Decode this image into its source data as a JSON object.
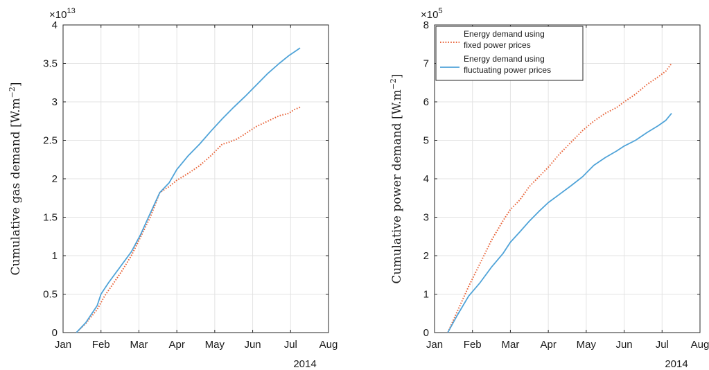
{
  "colors": {
    "fixed": "#e8643a",
    "fluct": "#4fa3d8"
  },
  "chart_data": [
    {
      "type": "line",
      "ylabel": "Cumulative gas demand [W.m",
      "ylabel_sup": "−2",
      "ylabel_end": "]",
      "y_exponent_base": "×10",
      "y_exponent_power": "13",
      "x_tick_labels": [
        "Jan",
        "Feb",
        "Mar",
        "Apr",
        "May",
        "Jun",
        "Jul",
        "Aug"
      ],
      "x_secondary_label": "2014",
      "xlim": [
        0,
        7
      ],
      "ylim": [
        0,
        4
      ],
      "y_ticks": [
        0,
        0.5,
        1,
        1.5,
        2,
        2.5,
        3,
        3.5,
        4
      ],
      "y_tick_labels": [
        "0",
        "0.5",
        "1",
        "1.5",
        "2",
        "2.5",
        "3",
        "3.5",
        "4"
      ],
      "grid": true,
      "legend": null,
      "series": [
        {
          "name": "Energy demand using fixed power prices",
          "style": "dotted",
          "x": [
            0.35,
            0.6,
            0.9,
            1.1,
            1.3,
            1.55,
            1.8,
            2.05,
            2.3,
            2.55,
            2.8,
            3.0,
            3.3,
            3.6,
            3.9,
            4.2,
            4.35,
            4.6,
            4.85,
            5.1,
            5.4,
            5.7,
            5.95,
            6.1,
            6.25
          ],
          "y": [
            0,
            0.12,
            0.3,
            0.48,
            0.62,
            0.8,
            1.0,
            1.25,
            1.5,
            1.82,
            1.9,
            1.98,
            2.07,
            2.17,
            2.3,
            2.45,
            2.47,
            2.52,
            2.6,
            2.68,
            2.75,
            2.82,
            2.85,
            2.9,
            2.93
          ]
        },
        {
          "name": "Energy demand using fluctuating power prices",
          "style": "solid",
          "x": [
            0.35,
            0.6,
            0.9,
            1.0,
            1.2,
            1.5,
            1.8,
            2.05,
            2.3,
            2.55,
            2.8,
            3.0,
            3.3,
            3.6,
            3.9,
            4.2,
            4.5,
            4.8,
            5.1,
            5.4,
            5.7,
            5.95,
            6.1,
            6.25
          ],
          "y": [
            0,
            0.13,
            0.35,
            0.5,
            0.65,
            0.85,
            1.05,
            1.28,
            1.55,
            1.82,
            1.95,
            2.12,
            2.3,
            2.45,
            2.62,
            2.78,
            2.93,
            3.07,
            3.22,
            3.37,
            3.5,
            3.6,
            3.65,
            3.7
          ]
        }
      ]
    },
    {
      "type": "line",
      "ylabel": "Cumulative power demand [W.m",
      "ylabel_sup": "−2",
      "ylabel_end": "]",
      "y_exponent_base": "×10",
      "y_exponent_power": "5",
      "x_tick_labels": [
        "Jan",
        "Feb",
        "Mar",
        "Apr",
        "May",
        "Jun",
        "Jul",
        "Aug"
      ],
      "x_secondary_label": "2014",
      "xlim": [
        0,
        7
      ],
      "ylim": [
        0,
        8
      ],
      "y_ticks": [
        0,
        1,
        2,
        3,
        4,
        5,
        6,
        7,
        8
      ],
      "y_tick_labels": [
        "0",
        "1",
        "2",
        "3",
        "4",
        "5",
        "6",
        "7",
        "8"
      ],
      "grid": true,
      "legend": "top-left",
      "series": [
        {
          "name": "Energy demand using fixed power prices",
          "legend_lines": [
            "Energy demand using",
            "fixed power prices"
          ],
          "style": "dotted",
          "x": [
            0.35,
            0.6,
            0.9,
            1.2,
            1.5,
            1.8,
            2.0,
            2.25,
            2.5,
            2.75,
            3.0,
            3.3,
            3.6,
            3.9,
            4.2,
            4.5,
            4.8,
            5.0,
            5.3,
            5.6,
            5.9,
            6.1,
            6.25
          ],
          "y": [
            0,
            0.55,
            1.2,
            1.8,
            2.4,
            2.9,
            3.2,
            3.45,
            3.8,
            4.05,
            4.3,
            4.65,
            4.95,
            5.25,
            5.5,
            5.7,
            5.85,
            6.0,
            6.2,
            6.45,
            6.65,
            6.8,
            7.0
          ]
        },
        {
          "name": "Energy demand using fluctuating power prices",
          "legend_lines": [
            "Energy demand using",
            "fluctuating power prices"
          ],
          "style": "solid",
          "x": [
            0.35,
            0.6,
            0.9,
            1.2,
            1.5,
            1.8,
            2.0,
            2.25,
            2.5,
            2.75,
            3.0,
            3.3,
            3.6,
            3.9,
            4.2,
            4.5,
            4.8,
            5.0,
            5.3,
            5.6,
            5.9,
            6.1,
            6.25
          ],
          "y": [
            0,
            0.45,
            0.95,
            1.3,
            1.7,
            2.05,
            2.35,
            2.62,
            2.9,
            3.15,
            3.38,
            3.6,
            3.82,
            4.05,
            4.35,
            4.55,
            4.72,
            4.85,
            5.0,
            5.2,
            5.38,
            5.52,
            5.7
          ]
        }
      ]
    }
  ]
}
